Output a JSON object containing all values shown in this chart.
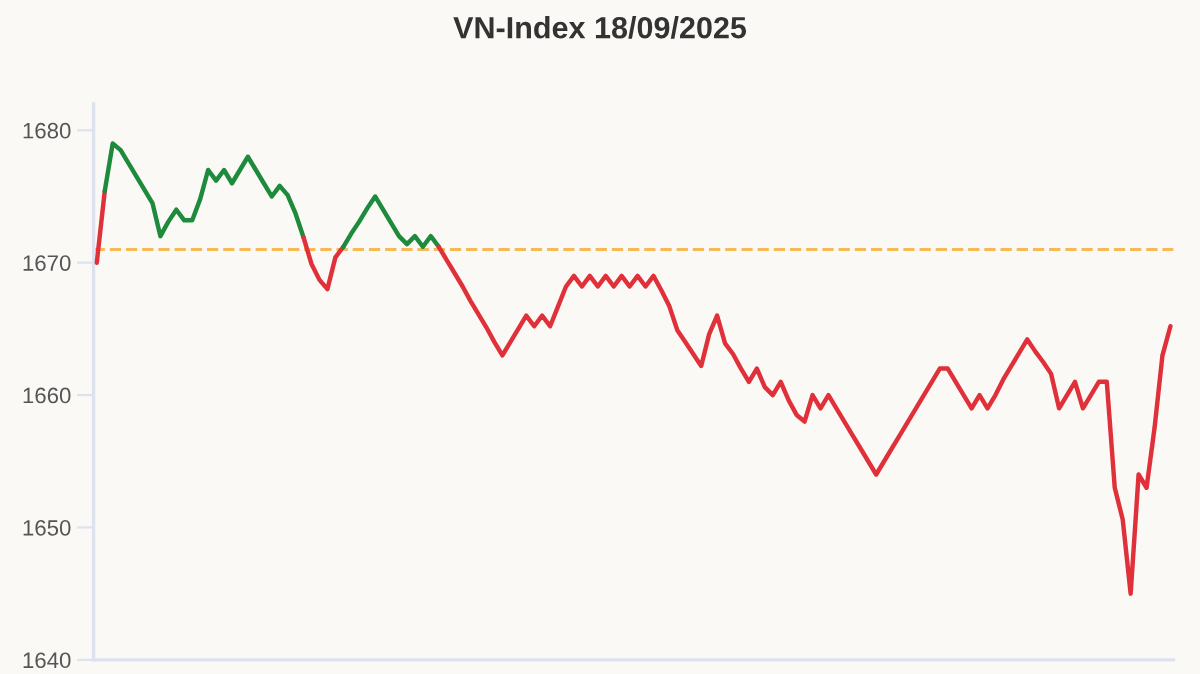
{
  "chart_data": {
    "type": "line",
    "title": "VN-Index 18/09/2025",
    "categories": [
      null,
      null,
      null,
      null,
      null,
      null,
      null,
      null,
      null,
      null,
      null,
      null,
      null,
      null,
      null,
      null,
      null,
      null,
      null,
      null,
      null,
      null,
      null,
      null,
      null,
      null,
      null,
      null,
      null,
      null,
      null,
      null,
      null,
      null,
      null,
      null,
      null,
      null,
      null,
      null,
      null,
      null,
      null,
      null,
      null,
      null,
      null,
      null,
      null,
      null,
      null,
      null,
      null,
      null,
      null,
      null,
      null,
      null,
      null,
      null,
      null,
      null,
      null,
      null,
      null,
      null,
      null,
      null,
      null,
      null,
      null,
      null,
      null,
      null,
      null,
      null,
      null,
      null,
      null,
      null,
      null,
      null,
      null,
      null,
      null,
      null,
      null,
      null,
      null,
      null,
      null,
      null,
      null,
      null,
      null,
      null,
      null,
      null,
      null,
      null,
      null,
      null,
      null,
      null,
      null,
      null,
      null,
      null,
      null,
      null,
      null,
      null,
      null,
      null,
      null,
      null,
      null,
      null,
      null,
      null,
      null,
      null,
      null,
      null,
      null,
      null,
      null,
      null,
      null,
      null,
      null,
      null,
      null,
      null,
      null,
      null
    ],
    "ylim": [
      1640,
      1682
    ],
    "yticks": [
      1640,
      1650,
      1660,
      1670,
      1680
    ],
    "tick_labels": "y",
    "grid": false,
    "line_style": "solid",
    "marker": "none",
    "ref_lines": [
      {
        "axis": "y",
        "value": 1671,
        "color": "#f7b955",
        "line_style": "dashed"
      }
    ],
    "series": [
      {
        "color": "#e0303a",
        "values": [
          1670,
          1675.4,
          null,
          null,
          null,
          null,
          null,
          null,
          null,
          null,
          null,
          null,
          null,
          null,
          null,
          null,
          null,
          null,
          null,
          null,
          null,
          null,
          null,
          null,
          null,
          null,
          null,
          null,
          null,
          null,
          null,
          null,
          null,
          null,
          null,
          null,
          null,
          null,
          null,
          null,
          null,
          null,
          null,
          null,
          null,
          null,
          null,
          null,
          null,
          null,
          null,
          null,
          null,
          null,
          null,
          null,
          null,
          null,
          null,
          null,
          null,
          null,
          null,
          null,
          null,
          null,
          null,
          null,
          null,
          null,
          null,
          null,
          null,
          null,
          null,
          null,
          null,
          null,
          null,
          null,
          null,
          null,
          null,
          null,
          null,
          null,
          null,
          null,
          null,
          null,
          null,
          null,
          null,
          null,
          null,
          null,
          null,
          null,
          null,
          null,
          null,
          null,
          null,
          null,
          null,
          null,
          null,
          null,
          null,
          null,
          null,
          null,
          null,
          null,
          null,
          null,
          null,
          null,
          null,
          null,
          null,
          null,
          null,
          null,
          null,
          null,
          null,
          null,
          null,
          null,
          null,
          null,
          null,
          null,
          null,
          null
        ]
      },
      {
        "color": "#1e8a3c",
        "values": [
          null,
          1675.4,
          1679,
          1678.5,
          1677.5,
          1676.5,
          1675.5,
          1674.5,
          1672,
          1673.1,
          1674,
          1673.2,
          1673.2,
          1674.8,
          1677,
          1676.2,
          1677,
          1676,
          1677,
          1678,
          1677,
          1676,
          1675,
          1675.8,
          1675.1,
          1673.7,
          1671.9,
          null,
          null,
          null,
          null,
          null,
          null,
          null,
          null,
          null,
          null,
          null,
          null,
          null,
          null,
          null,
          null,
          null,
          null,
          null,
          null,
          null,
          null,
          null,
          null,
          null,
          null,
          null,
          null,
          null,
          null,
          null,
          null,
          null,
          null,
          null,
          null,
          null,
          null,
          null,
          null,
          null,
          null,
          null,
          null,
          null,
          null,
          null,
          null,
          null,
          null,
          null,
          null,
          null,
          null,
          null,
          null,
          null,
          null,
          null,
          null,
          null,
          null,
          null,
          null,
          null,
          null,
          null,
          null,
          null,
          null,
          null,
          null,
          null,
          null,
          null,
          null,
          null,
          null,
          null,
          null,
          null,
          null,
          null,
          null,
          null,
          null,
          null,
          null,
          null,
          null,
          null,
          null,
          null,
          null,
          null,
          null,
          null,
          null,
          null,
          null,
          null,
          null,
          null,
          null,
          null,
          null,
          null,
          null,
          null
        ]
      },
      {
        "color": "#e0303a",
        "values": [
          null,
          null,
          null,
          null,
          null,
          null,
          null,
          null,
          null,
          null,
          null,
          null,
          null,
          null,
          null,
          null,
          null,
          null,
          null,
          null,
          null,
          null,
          null,
          null,
          null,
          null,
          1671.9,
          1669.9,
          1668.7,
          1668,
          1670.4,
          1671.2,
          null,
          null,
          null,
          null,
          null,
          null,
          null,
          null,
          null,
          null,
          null,
          null,
          null,
          null,
          null,
          null,
          null,
          null,
          null,
          null,
          null,
          null,
          null,
          null,
          null,
          null,
          null,
          null,
          null,
          null,
          null,
          null,
          null,
          null,
          null,
          null,
          null,
          null,
          null,
          null,
          null,
          null,
          null,
          null,
          null,
          null,
          null,
          null,
          null,
          null,
          null,
          null,
          null,
          null,
          null,
          null,
          null,
          null,
          null,
          null,
          null,
          null,
          null,
          null,
          null,
          null,
          null,
          null,
          null,
          null,
          null,
          null,
          null,
          null,
          null,
          null,
          null,
          null,
          null,
          null,
          null,
          null,
          null,
          null,
          null,
          null,
          null,
          null,
          null,
          null,
          null,
          null,
          null,
          null,
          null,
          null,
          null,
          null,
          null,
          null,
          null,
          null,
          null,
          null
        ]
      },
      {
        "color": "#1e8a3c",
        "values": [
          null,
          null,
          null,
          null,
          null,
          null,
          null,
          null,
          null,
          null,
          null,
          null,
          null,
          null,
          null,
          null,
          null,
          null,
          null,
          null,
          null,
          null,
          null,
          null,
          null,
          null,
          null,
          null,
          null,
          null,
          null,
          1671.2,
          1672.2,
          1673.1,
          1674.1,
          1675,
          1674,
          1673,
          1672,
          1671.4,
          1672,
          1671.2,
          1672,
          1671.2,
          null,
          null,
          null,
          null,
          null,
          null,
          null,
          null,
          null,
          null,
          null,
          null,
          null,
          null,
          null,
          null,
          null,
          null,
          null,
          null,
          null,
          null,
          null,
          null,
          null,
          null,
          null,
          null,
          null,
          null,
          null,
          null,
          null,
          null,
          null,
          null,
          null,
          null,
          null,
          null,
          null,
          null,
          null,
          null,
          null,
          null,
          null,
          null,
          null,
          null,
          null,
          null,
          null,
          null,
          null,
          null,
          null,
          null,
          null,
          null,
          null,
          null,
          null,
          null,
          null,
          null,
          null,
          null,
          null,
          null,
          null,
          null,
          null,
          null,
          null,
          null,
          null,
          null,
          null,
          null,
          null,
          null,
          null,
          null,
          null,
          null,
          null,
          null,
          null,
          null,
          null,
          null
        ]
      },
      {
        "color": "#e0303a",
        "values": [
          null,
          null,
          null,
          null,
          null,
          null,
          null,
          null,
          null,
          null,
          null,
          null,
          null,
          null,
          null,
          null,
          null,
          null,
          null,
          null,
          null,
          null,
          null,
          null,
          null,
          null,
          null,
          null,
          null,
          null,
          null,
          null,
          null,
          null,
          null,
          null,
          null,
          null,
          null,
          null,
          null,
          null,
          null,
          1671.2,
          1670.2,
          1669.2,
          1668.2,
          1667.1,
          1666.1,
          1665.1,
          1664,
          1663,
          1664,
          1665,
          1666,
          1665.2,
          1666,
          1665.2,
          1666.7,
          1668.2,
          1669,
          1668.2,
          1669,
          1668.2,
          1669,
          1668.2,
          1669,
          1668.2,
          1669,
          1668.2,
          1669,
          1667.9,
          1666.7,
          1664.9,
          1664,
          1663.1,
          1662.2,
          1664.6,
          1666,
          1663.9,
          1663.1,
          1662,
          1661,
          1662,
          1660.6,
          1660,
          1661,
          1659.6,
          1658.5,
          1658,
          1660,
          1659,
          1660,
          1659,
          1658,
          1657,
          1656,
          1655,
          1654,
          1655,
          1656,
          1657,
          1658,
          1659,
          1660,
          1661,
          1662,
          1662,
          1661,
          1660,
          1659,
          1660,
          1659,
          1660,
          1661.2,
          1662.2,
          1663.2,
          1664.2,
          1663.3,
          1662.5,
          1661.6,
          1659,
          1660,
          1661,
          1659,
          1660,
          1661,
          1661,
          1653,
          1650.6,
          1645,
          1654,
          1653,
          1657.5,
          1663,
          1665.2
        ]
      }
    ]
  }
}
